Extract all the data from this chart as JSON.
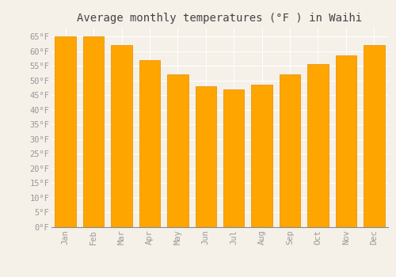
{
  "title": "Average monthly temperatures (°F ) in Waihi",
  "months": [
    "Jan",
    "Feb",
    "Mar",
    "Apr",
    "May",
    "Jun",
    "Jul",
    "Aug",
    "Sep",
    "Oct",
    "Nov",
    "Dec"
  ],
  "values": [
    65,
    65,
    62,
    57,
    52,
    48,
    47,
    48.5,
    52,
    55.5,
    58.5,
    62
  ],
  "bar_color": "#FFA500",
  "bar_edge_color": "#E8960A",
  "ylim": [
    0,
    68
  ],
  "yticks": [
    0,
    5,
    10,
    15,
    20,
    25,
    30,
    35,
    40,
    45,
    50,
    55,
    60,
    65
  ],
  "ytick_labels": [
    "0°F",
    "5°F",
    "10°F",
    "15°F",
    "20°F",
    "25°F",
    "30°F",
    "35°F",
    "40°F",
    "45°F",
    "50°F",
    "55°F",
    "60°F",
    "65°F"
  ],
  "background_color": "#f5f0e8",
  "grid_color": "#ffffff",
  "title_fontsize": 10,
  "tick_fontsize": 7.5,
  "font_family": "monospace",
  "tick_color": "#999999",
  "title_color": "#444444"
}
